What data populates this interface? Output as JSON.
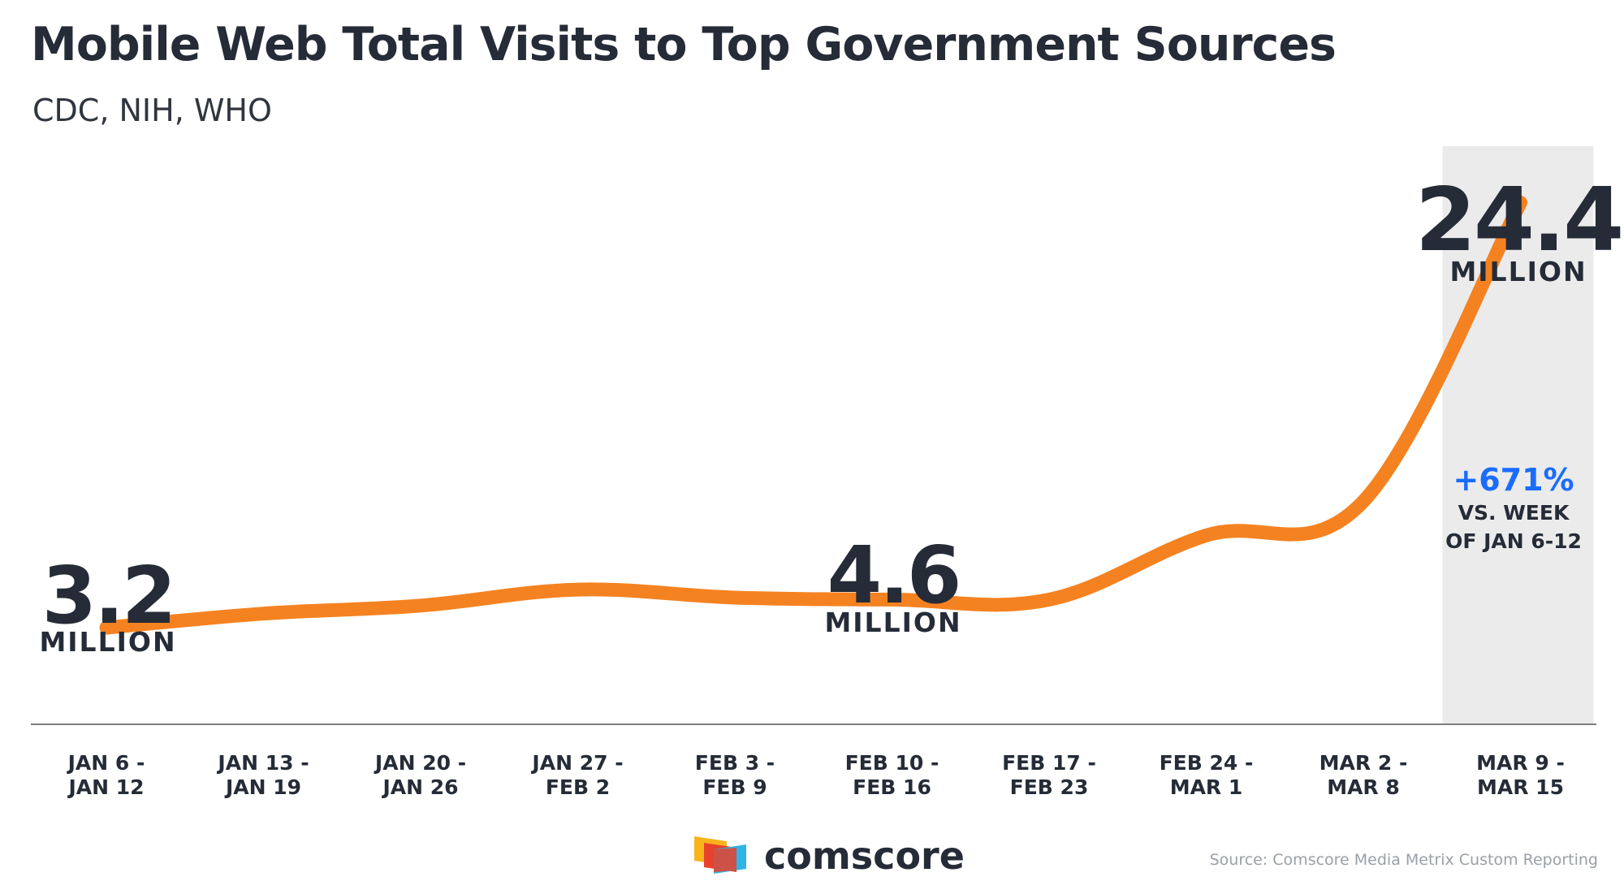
{
  "title": "Mobile Web Total Visits to Top Government Sources",
  "subtitle": "CDC, NIH, WHO",
  "chart_data": {
    "type": "line",
    "title": "Mobile Web Total Visits to Top Government Sources",
    "subtitle": "CDC, NIH, WHO",
    "categories": [
      [
        "JAN 6 -",
        "JAN 12"
      ],
      [
        "JAN 13 -",
        "JAN 19"
      ],
      [
        "JAN 20 -",
        "JAN 26"
      ],
      [
        "JAN 27 -",
        "FEB 2"
      ],
      [
        "FEB 3 -",
        "FEB 9"
      ],
      [
        "FEB 10 -",
        "FEB 16"
      ],
      [
        "FEB 17 -",
        "FEB 23"
      ],
      [
        "FEB 24 -",
        "MAR 1"
      ],
      [
        "MAR 2 -",
        "MAR 8"
      ],
      [
        "MAR 9 -",
        "MAR 15"
      ]
    ],
    "series": [
      {
        "name": "Mobile Web Total Visits (millions)",
        "color": "#f58220",
        "values": [
          3.2,
          3.9,
          4.3,
          5.1,
          4.7,
          4.6,
          4.6,
          7.8,
          9.5,
          24.4
        ]
      }
    ],
    "ylim": [
      0,
      26
    ],
    "xlabel": "",
    "ylabel": "",
    "highlight_index": 9,
    "highlight_color": "#ebebeb",
    "annotations": [
      {
        "index": 0,
        "value": "3.2",
        "unit": "MILLION"
      },
      {
        "index": 5,
        "value": "4.6",
        "unit": "MILLION"
      },
      {
        "index": 9,
        "value": "24.4",
        "unit": "MILLION"
      }
    ],
    "change_callout": {
      "index": 9,
      "percent": "+671%",
      "line1": "VS. WEEK",
      "line2": "OF JAN 6-12",
      "color": "#1a6cff"
    }
  },
  "footer": {
    "brand": "comscore",
    "source": "Source: Comscore Media Metrix Custom Reporting"
  },
  "icons": {
    "brand_logo": "comscore-logo-icon"
  }
}
